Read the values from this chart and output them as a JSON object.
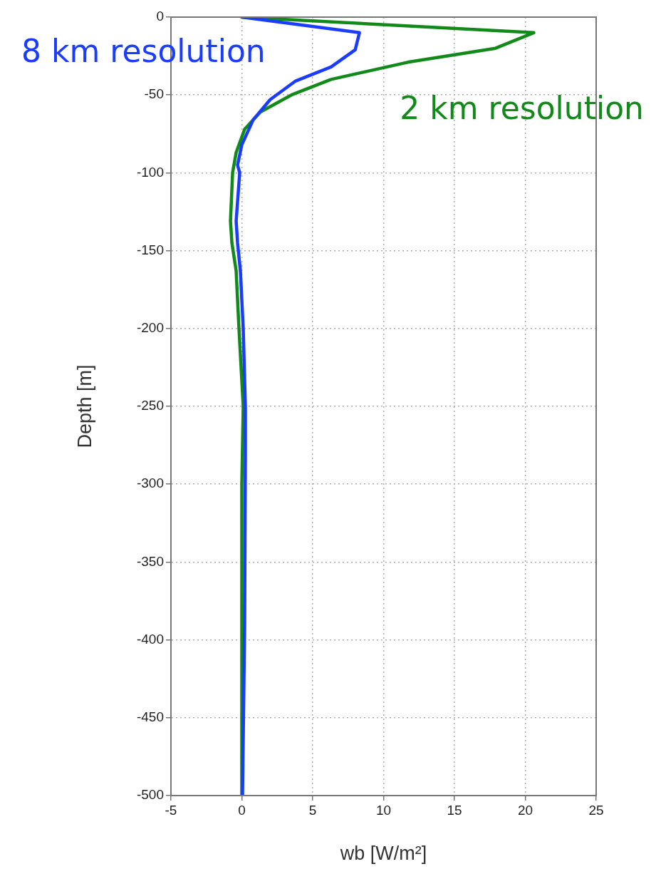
{
  "chart_data": {
    "type": "line",
    "xlabel": "wb [W/m²]",
    "ylabel": "Depth [m]",
    "xlim": [
      -5,
      25
    ],
    "xticks": [
      -5,
      0,
      5,
      10,
      15,
      20,
      25
    ],
    "ylim": [
      -500,
      0
    ],
    "yticks": [
      -500,
      -450,
      -400,
      -350,
      -300,
      -250,
      -200,
      -150,
      -100,
      -50,
      0
    ],
    "grid": true,
    "legend": false,
    "marker": "none",
    "line_style": "solid",
    "series": [
      {
        "name": "8 km resolution",
        "color": "#1a3cff",
        "x": [
          0,
          8.3,
          8.0,
          6.3,
          3.8,
          2.0,
          0.8,
          0,
          -0.3,
          -0.15,
          -0.4,
          -0.3,
          -0.1,
          0.1,
          0.25,
          0.25,
          0.2,
          0.05
        ],
        "values": [
          0,
          -10,
          -21,
          -32,
          -41,
          -53,
          -66,
          -82,
          -95,
          -100,
          -131,
          -145,
          -163,
          -200,
          -250,
          -280,
          -390,
          -500
        ]
      },
      {
        "name": "2 km resolution",
        "color": "#118a1a",
        "x": [
          0,
          20.6,
          17.9,
          11.7,
          6.3,
          3.5,
          1.3,
          0.2,
          -0.4,
          -0.65,
          -0.8,
          -0.7,
          -0.4,
          -0.2,
          0.1,
          0,
          0
        ],
        "values": [
          0,
          -10,
          -20,
          -29,
          -40,
          -50,
          -61,
          -72,
          -87,
          -100,
          -131,
          -145,
          -163,
          -200,
          -250,
          -300,
          -500
        ]
      }
    ]
  }
}
